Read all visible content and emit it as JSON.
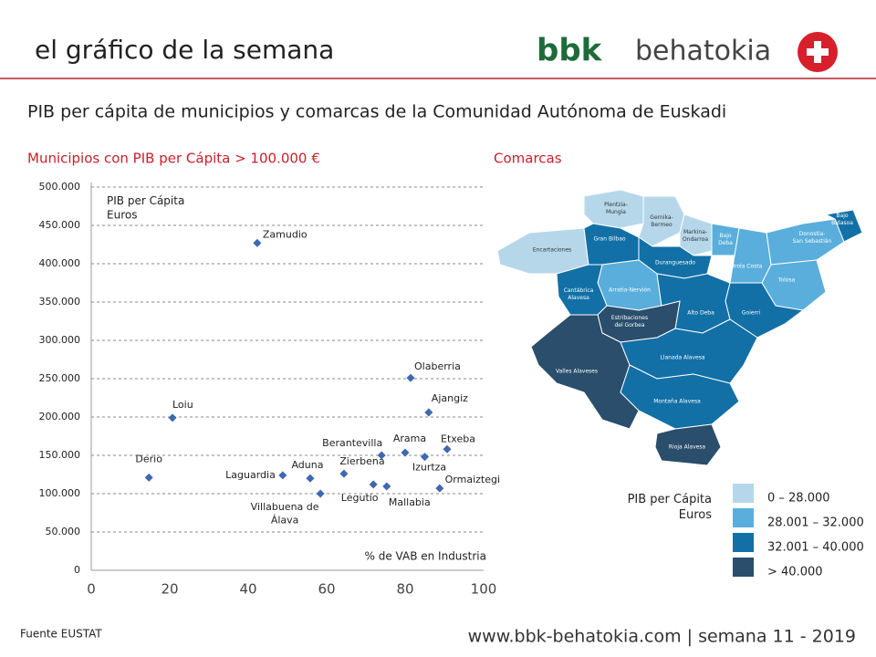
{
  "header": {
    "title": "el gráfico de la semana",
    "logo_bbk": "bbk",
    "logo_name": "behatokia"
  },
  "headline": "PIB  per cápita de municipios y comarcas de la Comunidad Autónoma de Euskadi",
  "chart_data": {
    "type": "scatter",
    "title": "Municipios con PIB per Cápita > 100.000 €",
    "ylabel": "PIB per Cápita\nEuros",
    "xlabel": "% de VAB en Industria",
    "labels": [
      "Zamudio",
      "Olaberria",
      "Loiu",
      "Ajangiz",
      "Derio",
      "Laguardia",
      "Aduna",
      "Villabuena de\nÁlava",
      "Zierbena",
      "Berantevilla",
      "Arama",
      "Etxeba",
      "Izurtza",
      "Legutio",
      "Mallabia",
      "Ormaiztegi"
    ],
    "x": [
      42.3,
      81.4,
      20.7,
      86,
      14.7,
      48.8,
      55.8,
      58.4,
      64.4,
      74,
      80,
      90.7,
      85,
      71.9,
      75.3,
      88.8
    ],
    "values": [
      427000,
      251000,
      199000,
      206000,
      121000,
      124000,
      120000,
      100000,
      126000,
      150000,
      153500,
      158000,
      148000,
      112000,
      109500,
      107000
    ],
    "color": "#3e68b0",
    "xlim": [
      0,
      100
    ],
    "xticks": [
      0,
      20,
      40,
      60,
      80,
      100
    ],
    "ylim": [
      0,
      500000
    ],
    "yticks": [
      {
        "value": 0,
        "label": "0"
      },
      {
        "value": 50000,
        "label": "50.000"
      },
      {
        "value": 100000,
        "label": "100.000"
      },
      {
        "value": 150000,
        "label": "150.000"
      },
      {
        "value": 200000,
        "label": "200.000"
      },
      {
        "value": 250000,
        "label": "250.000"
      },
      {
        "value": 300000,
        "label": "300.000"
      },
      {
        "value": 350000,
        "label": "350.000"
      },
      {
        "value": 400000,
        "label": "400.000"
      },
      {
        "value": 450000,
        "label": "450.000"
      },
      {
        "value": 500000,
        "label": "500.000"
      }
    ],
    "grid": true
  },
  "map": {
    "title": "Comarcas",
    "legend_title": "PIB per Cápita\nEuros",
    "classes": [
      {
        "label": "0 – 28.000",
        "color": "#b6d7ea"
      },
      {
        "label": "28.001 – 32.000",
        "color": "#5aaedc"
      },
      {
        "label": "32.001 – 40.000",
        "color": "#1270a6"
      },
      {
        "label": "> 40.000",
        "color": "#2a4e6c"
      }
    ],
    "regions": [
      {
        "name": "Encartaciones",
        "class": 0
      },
      {
        "name": "Plentzia-\nMungia",
        "class": 0
      },
      {
        "name": "Gran Bilbao",
        "class": 2
      },
      {
        "name": "Gernika-\nBermeo",
        "class": 0
      },
      {
        "name": "Markina-\nOndarroa",
        "class": 0
      },
      {
        "name": "Bajo\nDeba",
        "class": 1
      },
      {
        "name": "Urola Costa",
        "class": 1
      },
      {
        "name": "Donostia-\nSan Sebastián",
        "class": 1
      },
      {
        "name": "Bajo\nBidasoa",
        "class": 2
      },
      {
        "name": "Tolosa",
        "class": 1
      },
      {
        "name": "Duranguesado",
        "class": 2
      },
      {
        "name": "Arratia-Nervión",
        "class": 1
      },
      {
        "name": "Cantábrica\nAlavesa",
        "class": 2
      },
      {
        "name": "Alto Deba",
        "class": 2
      },
      {
        "name": "Goierri",
        "class": 2
      },
      {
        "name": "Estribaciones\ndel Gorbea",
        "class": 3
      },
      {
        "name": "Valles Alaveses",
        "class": 3
      },
      {
        "name": "Llanada Alavesa",
        "class": 2
      },
      {
        "name": "Montaña Alavesa",
        "class": 2
      },
      {
        "name": "Rioja Alavesa",
        "class": 3
      }
    ]
  },
  "footer": {
    "source": "Fuente EUSTAT",
    "site": "www.bbk-behatokia.com | semana 11 - 2019"
  }
}
